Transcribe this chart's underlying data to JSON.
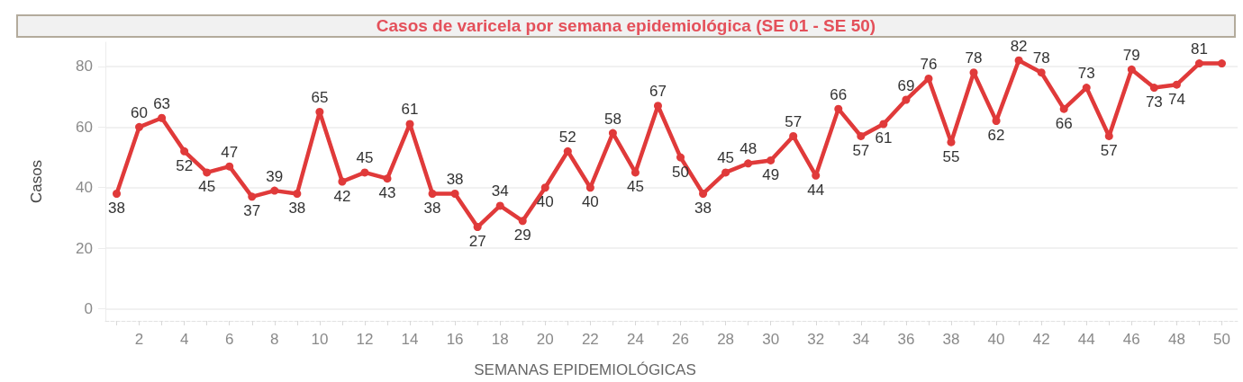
{
  "chart_data": {
    "type": "line",
    "title": "Casos de varicela por semana epidemiológica (SE 01 - SE 50)",
    "xlabel": "SEMANAS EPIDEMIOLÓGICAS",
    "ylabel": "Casos",
    "x": [
      1,
      2,
      3,
      4,
      5,
      6,
      7,
      8,
      9,
      10,
      11,
      12,
      13,
      14,
      15,
      16,
      17,
      18,
      19,
      20,
      21,
      22,
      23,
      24,
      25,
      26,
      27,
      28,
      29,
      30,
      31,
      32,
      33,
      34,
      35,
      36,
      37,
      38,
      39,
      40,
      41,
      42,
      43,
      44,
      45,
      46,
      47,
      48,
      49,
      50
    ],
    "series": [
      {
        "color": "#e03a3a",
        "values": [
          38,
          60,
          63,
          52,
          45,
          47,
          37,
          39,
          38,
          65,
          42,
          45,
          43,
          61,
          38,
          38,
          27,
          34,
          29,
          40,
          52,
          40,
          58,
          45,
          67,
          50,
          38,
          45,
          48,
          49,
          57,
          44,
          66,
          57,
          61,
          69,
          76,
          55,
          78,
          62,
          82,
          78,
          66,
          73,
          57,
          79,
          73,
          74,
          81,
          81
        ],
        "value_labels": [
          "38",
          "60",
          "63",
          "52",
          "45",
          "47",
          "37",
          "39",
          "38",
          "65",
          "42",
          "45",
          "43",
          "61",
          "38",
          "38",
          "27",
          "34",
          "29",
          "40",
          "52",
          "40",
          "58",
          "45",
          "67",
          "50",
          "38",
          "45",
          "48",
          "49",
          "57",
          "44",
          "66",
          "57",
          "61",
          "69",
          "76",
          "55",
          "78",
          "62",
          "82",
          "78",
          "66",
          "73",
          "57",
          "79",
          "73",
          "74",
          "81",
          null
        ]
      }
    ],
    "xlim": [
      0.5,
      50.7
    ],
    "ylim": [
      -4,
      88
    ],
    "yticks": [
      0,
      20,
      40,
      60,
      80
    ],
    "xticks": [
      {
        "value": 1,
        "label": null
      },
      2,
      {
        "value": 3,
        "label": null
      },
      4,
      {
        "value": 5,
        "label": null
      },
      6,
      {
        "value": 7,
        "label": null
      },
      8,
      {
        "value": 9,
        "label": null
      },
      10,
      {
        "value": 11,
        "label": null
      },
      12,
      {
        "value": 13,
        "label": null
      },
      14,
      {
        "value": 15,
        "label": null
      },
      16,
      {
        "value": 17,
        "label": null
      },
      18,
      {
        "value": 19,
        "label": null
      },
      20,
      {
        "value": 21,
        "label": null
      },
      22,
      {
        "value": 23,
        "label": null
      },
      24,
      {
        "value": 25,
        "label": null
      },
      26,
      {
        "value": 27,
        "label": null
      },
      28,
      {
        "value": 29,
        "label": null
      },
      30,
      {
        "value": 31,
        "label": null
      },
      32,
      {
        "value": 33,
        "label": null
      },
      34,
      {
        "value": 35,
        "label": null
      },
      36,
      {
        "value": 37,
        "label": null
      },
      38,
      {
        "value": 39,
        "label": null
      },
      40,
      {
        "value": 41,
        "label": null
      },
      42,
      {
        "value": 43,
        "label": null
      },
      44,
      {
        "value": 45,
        "label": null
      },
      46,
      {
        "value": 47,
        "label": null
      },
      48,
      {
        "value": 49,
        "label": null
      },
      50
    ],
    "grid": "y",
    "marker": "circle",
    "line_style": "solid"
  }
}
